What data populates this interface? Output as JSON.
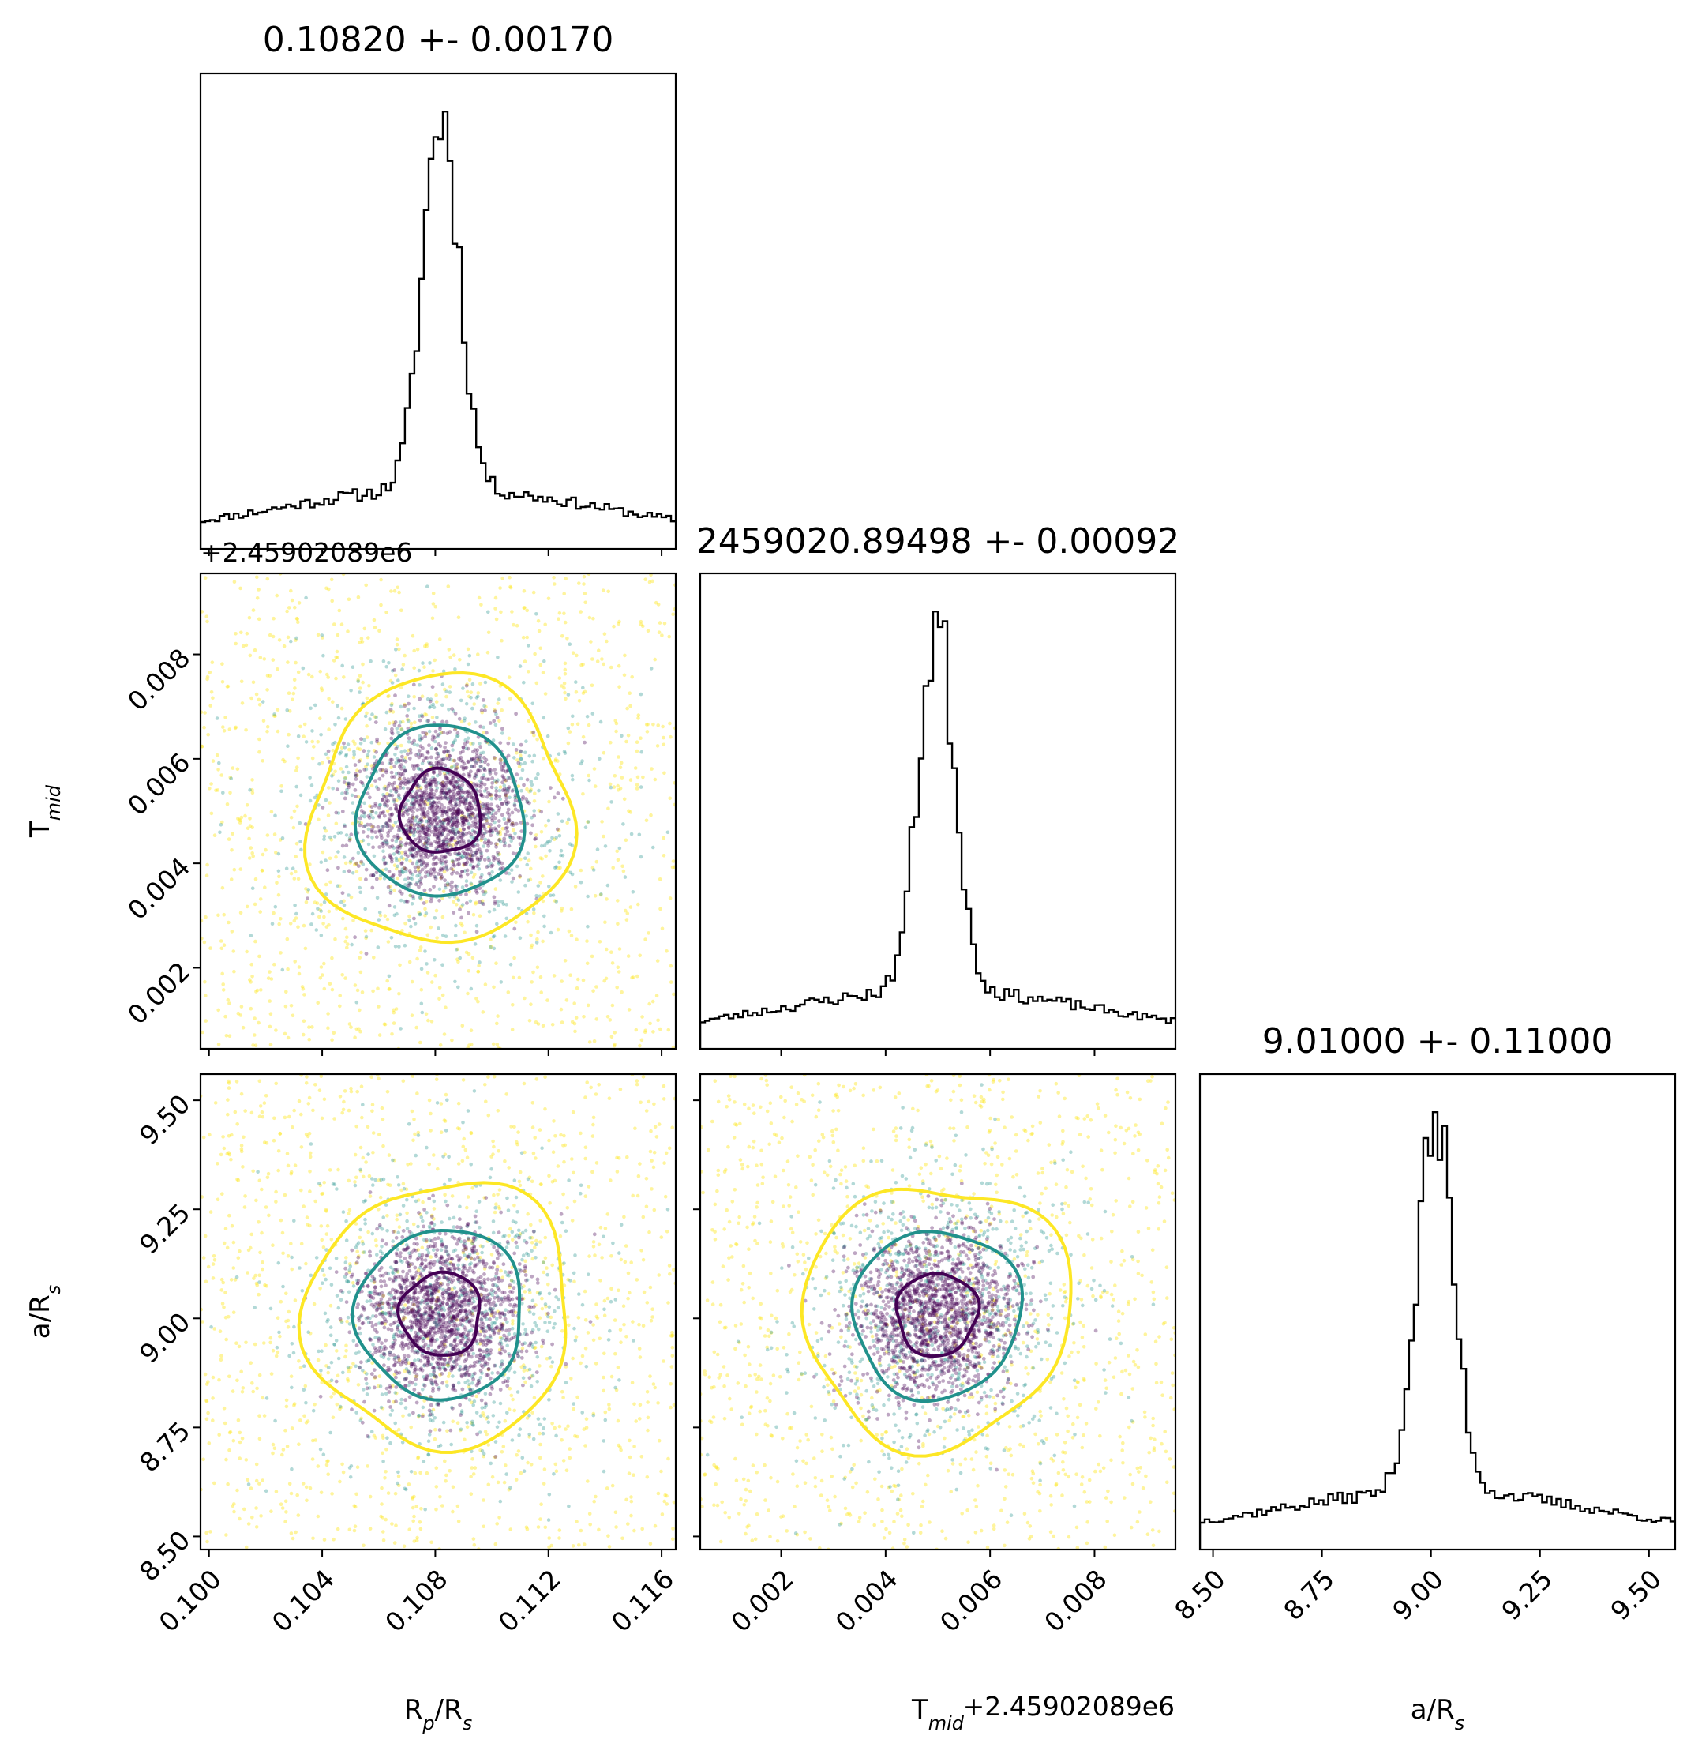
{
  "chart_data": {
    "type": "corner",
    "parameters": [
      {
        "key": "rp",
        "label_main": "R",
        "label_sub": "p",
        "label_tail": "/R",
        "label_tail_sub": "s",
        "range": [
          0.0997,
          0.1165
        ],
        "ticks": [
          "0.100",
          "0.104",
          "0.108",
          "0.112",
          "0.116"
        ],
        "tick_values": [
          0.1,
          0.104,
          0.108,
          0.112,
          0.116
        ]
      },
      {
        "key": "tmid",
        "label_main": "T",
        "label_sub": "mid",
        "label_tail": "",
        "label_tail_sub": "",
        "offset_text": "+2.45902089e6",
        "range": [
          0.00045,
          0.00955
        ],
        "ticks": [
          "0.002",
          "0.004",
          "0.006",
          "0.008"
        ],
        "tick_values": [
          0.002,
          0.004,
          0.006,
          0.008
        ]
      },
      {
        "key": "ars",
        "label_main": "a/R",
        "label_sub": "s",
        "label_tail": "",
        "label_tail_sub": "",
        "range": [
          8.47,
          9.56
        ],
        "ticks": [
          "8.50",
          "8.75",
          "9.00",
          "9.25",
          "9.50"
        ],
        "tick_values": [
          8.5,
          8.75,
          9.0,
          9.25,
          9.5
        ]
      }
    ],
    "titles": [
      "0.10820 +- 0.00170",
      "2459020.89498 +- 0.00092",
      "9.01000 +- 0.11000"
    ],
    "posterior_summary": [
      {
        "param": "R_p/R_s",
        "mean": 0.1082,
        "std": 0.0017
      },
      {
        "param": "T_mid",
        "mean": 2459020.89498,
        "std": 0.00092
      },
      {
        "param": "a/R_s",
        "mean": 9.01,
        "std": 0.11
      }
    ],
    "contour_levels": [
      "inner",
      "middle",
      "outer"
    ],
    "colors": {
      "inner": "#440154",
      "middle": "#21918c",
      "outer": "#fde725",
      "hist": "#000000"
    }
  }
}
